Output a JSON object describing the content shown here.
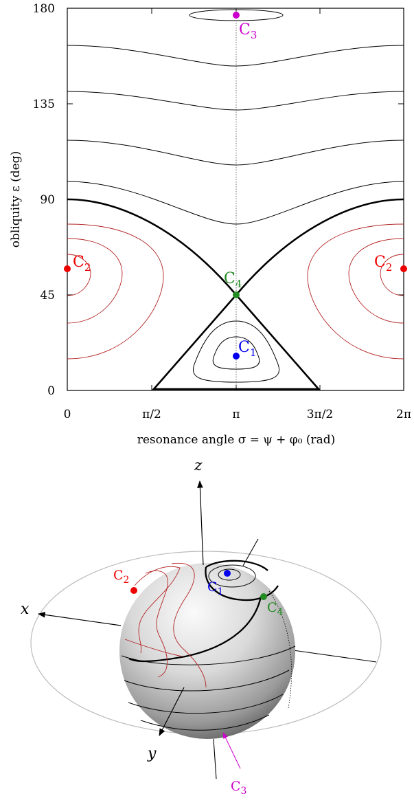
{
  "top_plot": {
    "y_axis_label": "obliquity ε (deg)",
    "x_axis_label": "resonance angle σ = ψ + φ₀ (rad)",
    "y_ticks": [
      "0",
      "45",
      "90",
      "135",
      "180"
    ],
    "x_ticks": [
      "0",
      "π/2",
      "π",
      "3π/2",
      "2π"
    ]
  },
  "equilibria": {
    "C1": {
      "label": "C",
      "sub": "1",
      "color": "#0000ee"
    },
    "C2": {
      "label": "C",
      "sub": "2",
      "color": "#ee0000"
    },
    "C3": {
      "label": "C",
      "sub": "3",
      "color": "#cc00cc"
    },
    "C4": {
      "label": "C",
      "sub": "4",
      "color": "#228b22"
    }
  },
  "sphere": {
    "axis_x": "x",
    "axis_y": "y",
    "axis_z": "z"
  },
  "colors": {
    "separatrix": "#000000",
    "circulation": "#000000",
    "libration_c2": "#cc2222",
    "center_line": "#444444",
    "orbit_ring": "#bbbbbb"
  },
  "chart_data": {
    "type": "phase portrait (level curves)",
    "x_range": [
      0,
      6.2832
    ],
    "y_range": [
      0,
      180
    ],
    "equilibria_points": [
      {
        "name": "C1",
        "sigma": 3.1416,
        "epsilon": 18
      },
      {
        "name": "C2",
        "sigma": 0,
        "epsilon": 57
      },
      {
        "name": "C2",
        "sigma": 6.2832,
        "epsilon": 57
      },
      {
        "name": "C3",
        "sigma": 3.1416,
        "epsilon": 176
      },
      {
        "name": "C4",
        "sigma": 3.1416,
        "epsilon": 44
      }
    ],
    "separatrix_through": "C4"
  }
}
